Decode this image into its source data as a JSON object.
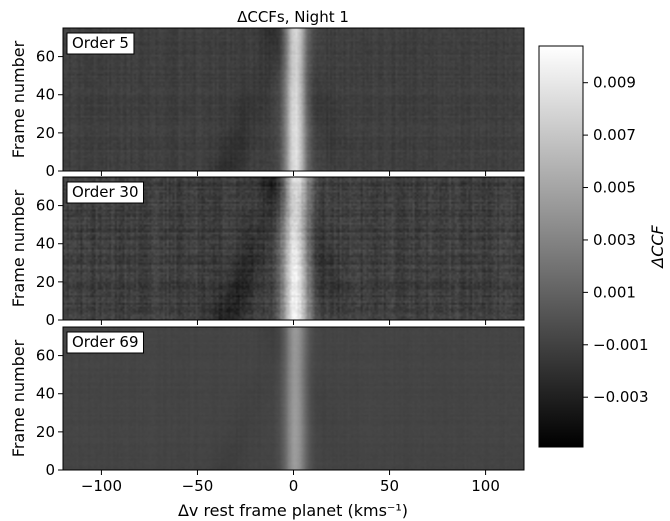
{
  "chart_data": {
    "type": "heatmap",
    "title": "ΔCCFs, Night 1",
    "xlabel": "Δv rest frame planet (kms⁻¹)",
    "xlim": [
      -120,
      120
    ],
    "x_ticks": [
      -100,
      -50,
      0,
      50,
      100
    ],
    "x_tick_labels": [
      "−100",
      "−50",
      "0",
      "50",
      "100"
    ],
    "colorbar": {
      "label": "ΔCCF",
      "min": -0.0049,
      "max": 0.0104,
      "ticks": [
        0.009,
        0.007,
        0.005,
        0.003,
        0.001,
        -0.001,
        -0.003
      ],
      "tick_labels": [
        "0.009",
        "0.007",
        "0.005",
        "0.003",
        "0.001",
        "−0.001",
        "−0.003"
      ],
      "colormap": "gray"
    },
    "panels": [
      {
        "label": "Order 5",
        "ylabel": "Frame number",
        "ylim": [
          0,
          75
        ],
        "y_ticks": [
          0,
          20,
          40,
          60
        ],
        "y_tick_labels": [
          "0",
          "20",
          "40",
          "60"
        ],
        "background": -0.0011,
        "peak_center_kms": 1,
        "peak_value": 0.0085,
        "peak_width_kms": 4,
        "noise_amplitude": 0.0008
      },
      {
        "label": "Order 30",
        "ylabel": "Frame number",
        "ylim": [
          0,
          75
        ],
        "y_ticks": [
          0,
          20,
          40,
          60
        ],
        "y_tick_labels": [
          "0",
          "20",
          "40",
          "60"
        ],
        "background": -0.0012,
        "peak_center_kms": 1,
        "peak_value": 0.0095,
        "peak_width_kms": 5,
        "noise_amplitude": 0.0016
      },
      {
        "label": "Order 69",
        "ylabel": "Frame number",
        "ylim": [
          0,
          75
        ],
        "y_ticks": [
          0,
          20,
          40,
          60
        ],
        "y_tick_labels": [
          "0",
          "20",
          "40",
          "60"
        ],
        "background": -0.0008,
        "peak_center_kms": 1,
        "peak_value": 0.0045,
        "peak_width_kms": 4,
        "noise_amplitude": 0.0003
      }
    ]
  }
}
